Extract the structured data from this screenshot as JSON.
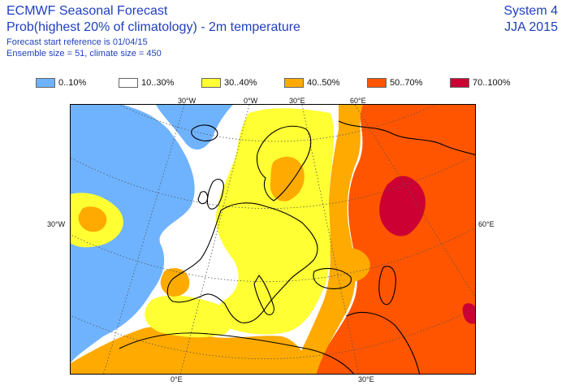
{
  "header": {
    "title": "ECMWF Seasonal Forecast",
    "subtitle": "Prob(highest 20% of climatology) - 2m temperature",
    "start_reference": "Forecast start reference is 01/04/15",
    "ensemble": "Ensemble size = 51, climate size = 450",
    "system": "System 4",
    "season": "JJA 2015"
  },
  "legend": [
    {
      "label": "0..10%",
      "color": "#6fb3ff"
    },
    {
      "label": "10..30%",
      "color": "#ffffff"
    },
    {
      "label": "30..40%",
      "color": "#ffff33"
    },
    {
      "label": "40..50%",
      "color": "#ffaa00"
    },
    {
      "label": "50..70%",
      "color": "#ff5500"
    },
    {
      "label": "70..100%",
      "color": "#cc0033"
    }
  ],
  "map": {
    "projection": "polar-stereographic",
    "top_labels": [
      "30°W",
      "0°W",
      "30°E",
      "60°E"
    ],
    "bottom_labels": [
      "0°E",
      "30°E"
    ],
    "left_label": "30°W",
    "right_label": "60°E",
    "coastline_color": "#000000",
    "grid_color": "#555555"
  }
}
